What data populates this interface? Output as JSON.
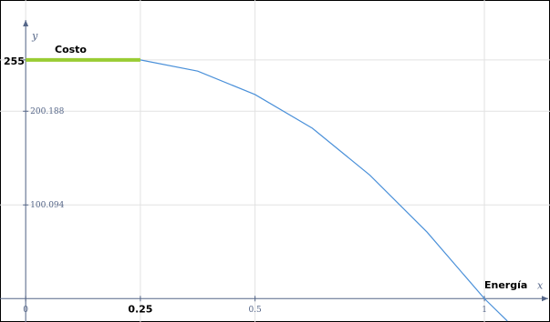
{
  "chart_data": {
    "type": "line",
    "x_label": "x",
    "y_label": "y",
    "annotations": [
      "Costo",
      "Energía"
    ],
    "xlim": [
      -0.056,
      1.143
    ],
    "ylim": [
      -25,
      319
    ],
    "xticks": [
      0,
      0.25,
      0.5,
      1
    ],
    "yticks": [
      100.094,
      200.188,
      255
    ],
    "grid": true,
    "series": [
      {
        "color": "#99cc33",
        "x": [
          0,
          0.25
        ],
        "values": [
          255,
          255
        ]
      },
      {
        "color": "#4a90d9",
        "x": [
          0.25,
          0.375,
          0.5,
          0.625,
          0.75,
          0.875,
          1,
          1.05
        ],
        "values": [
          255,
          243,
          218,
          182,
          132,
          71,
          0,
          -24
        ]
      }
    ]
  }
}
